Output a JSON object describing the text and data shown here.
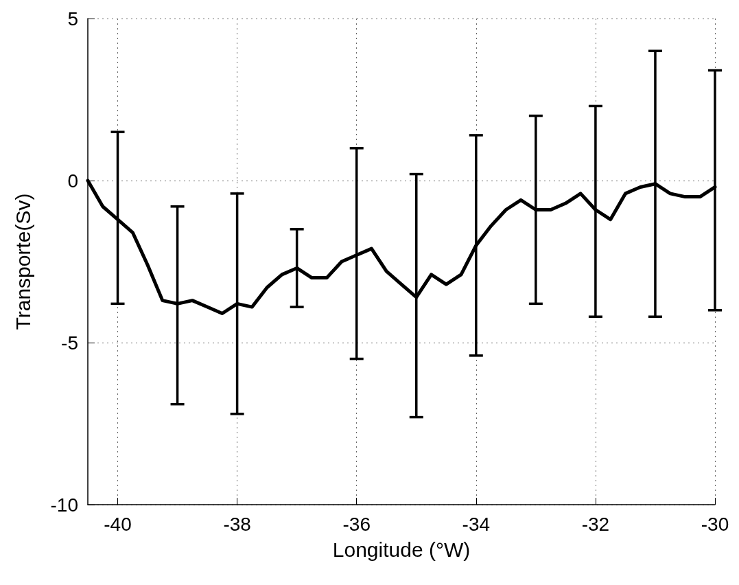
{
  "chart_data": {
    "type": "line",
    "xlabel": "Longitude (°W)",
    "ylabel": "Transporte(Sv)",
    "x": [
      -40.5,
      -40.25,
      -40,
      -39.75,
      -39.5,
      -39.25,
      -39,
      -38.75,
      -38.5,
      -38.25,
      -38,
      -37.75,
      -37.5,
      -37.25,
      -37,
      -36.75,
      -36.5,
      -36.25,
      -36,
      -35.75,
      -35.5,
      -35.25,
      -35,
      -34.75,
      -34.5,
      -34.25,
      -34,
      -33.75,
      -33.5,
      -33.25,
      -33,
      -32.75,
      -32.5,
      -32.25,
      -32,
      -31.75,
      -31.5,
      -31.25,
      -31,
      -30.75,
      -30.5,
      -30.25,
      -30
    ],
    "series": [
      {
        "color": "#000000",
        "values": [
          0,
          -0.8,
          -1.2,
          -1.6,
          -2.6,
          -3.7,
          -3.8,
          -3.7,
          -3.9,
          -4.1,
          -3.8,
          -3.9,
          -3.3,
          -2.9,
          -2.7,
          -3.0,
          -3.0,
          -2.5,
          -2.3,
          -2.1,
          -2.8,
          -3.2,
          -3.6,
          -2.9,
          -3.2,
          -2.9,
          -2.0,
          -1.4,
          -0.9,
          -0.6,
          -0.9,
          -0.9,
          -0.7,
          -0.4,
          -0.9,
          -1.2,
          -0.4,
          -0.2,
          -0.1,
          -0.4,
          -0.5,
          -0.5,
          -0.2
        ],
        "errors": [
          null,
          null,
          [
            -3.8,
            1.5
          ],
          null,
          null,
          null,
          [
            -6.9,
            -0.8
          ],
          null,
          null,
          null,
          [
            -7.2,
            -0.4
          ],
          null,
          null,
          null,
          [
            -3.9,
            -1.5
          ],
          null,
          null,
          null,
          [
            -5.5,
            1.0
          ],
          null,
          null,
          null,
          [
            -7.3,
            0.2
          ],
          null,
          null,
          null,
          [
            -5.4,
            1.4
          ],
          null,
          null,
          null,
          [
            -3.8,
            2.0
          ],
          null,
          null,
          null,
          [
            -4.2,
            2.3
          ],
          null,
          null,
          null,
          [
            -4.2,
            4.0
          ],
          null,
          null,
          null,
          [
            -4.0,
            3.4
          ]
        ]
      }
    ],
    "xlim": [
      -40.5,
      -30
    ],
    "xticks": [
      -40,
      -38,
      -36,
      -34,
      -32,
      -30
    ],
    "ylim": [
      -10,
      5
    ],
    "yticks": [
      -10,
      -5,
      0,
      5
    ],
    "grid": true,
    "marker": "none",
    "line_style": "solid"
  }
}
